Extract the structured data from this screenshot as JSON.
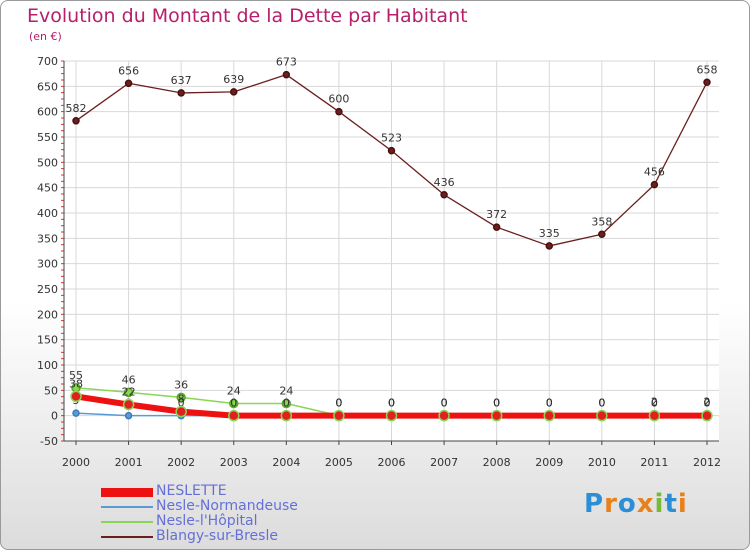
{
  "chart_data": {
    "type": "line",
    "title": "Evolution du Montant de la Dette par Habitant",
    "subtitle": "(en €)",
    "xlabel": "",
    "ylabel": "",
    "x": [
      "2000",
      "2001",
      "2002",
      "2003",
      "2004",
      "2005",
      "2006",
      "2007",
      "2008",
      "2009",
      "2010",
      "2011",
      "2012"
    ],
    "ylim": [
      -50,
      700
    ],
    "yticks": [
      -50,
      0,
      50,
      100,
      150,
      200,
      250,
      300,
      350,
      400,
      450,
      500,
      550,
      600,
      650,
      700
    ],
    "grid": true,
    "legend_position": "bottom-left",
    "series": [
      {
        "name": "NESLETTE",
        "color": "#ee1111",
        "values": [
          38,
          22,
          8,
          0,
          0,
          0,
          0,
          0,
          0,
          0,
          0,
          0,
          0
        ],
        "labels": [
          "38",
          "22",
          "8",
          "0",
          "0",
          "0",
          "0",
          "0",
          "0",
          "0",
          "0",
          "0",
          "0"
        ]
      },
      {
        "name": "Nesle-Normandeuse",
        "color": "#5b9bd5",
        "values": [
          5,
          0,
          0,
          0,
          0,
          0,
          0,
          0,
          0,
          0,
          0,
          0,
          0
        ],
        "labels": [
          "5",
          "0",
          "0",
          "0",
          "0",
          "0",
          "0",
          "0",
          "0",
          "0",
          "0",
          "0",
          "0"
        ]
      },
      {
        "name": "Nesle-l'Hôpital",
        "color": "#88d653",
        "values": [
          55,
          46,
          36,
          24,
          24,
          0,
          0,
          0,
          0,
          0,
          0,
          2,
          2
        ],
        "labels": [
          "55",
          "46",
          "36",
          "24",
          "24",
          "0",
          "0",
          "0",
          "0",
          "0",
          "0",
          "2",
          "2"
        ]
      },
      {
        "name": "Blangy-sur-Bresle",
        "color": "#6b1f1f",
        "values": [
          582,
          656,
          637,
          639,
          673,
          600,
          523,
          436,
          372,
          335,
          358,
          456,
          658
        ],
        "labels": [
          "582",
          "656",
          "637",
          "639",
          "673",
          "600",
          "523",
          "436",
          "372",
          "335",
          "358",
          "456",
          "658"
        ]
      }
    ]
  },
  "brand": {
    "letters": [
      "P",
      "r",
      "o",
      "x",
      "i",
      "t",
      "i"
    ],
    "colors": [
      "#2a8fd6",
      "#e8811a",
      "#2a8fd6",
      "#e8811a",
      "#79b93a",
      "#2a8fd6",
      "#e8811a"
    ]
  }
}
